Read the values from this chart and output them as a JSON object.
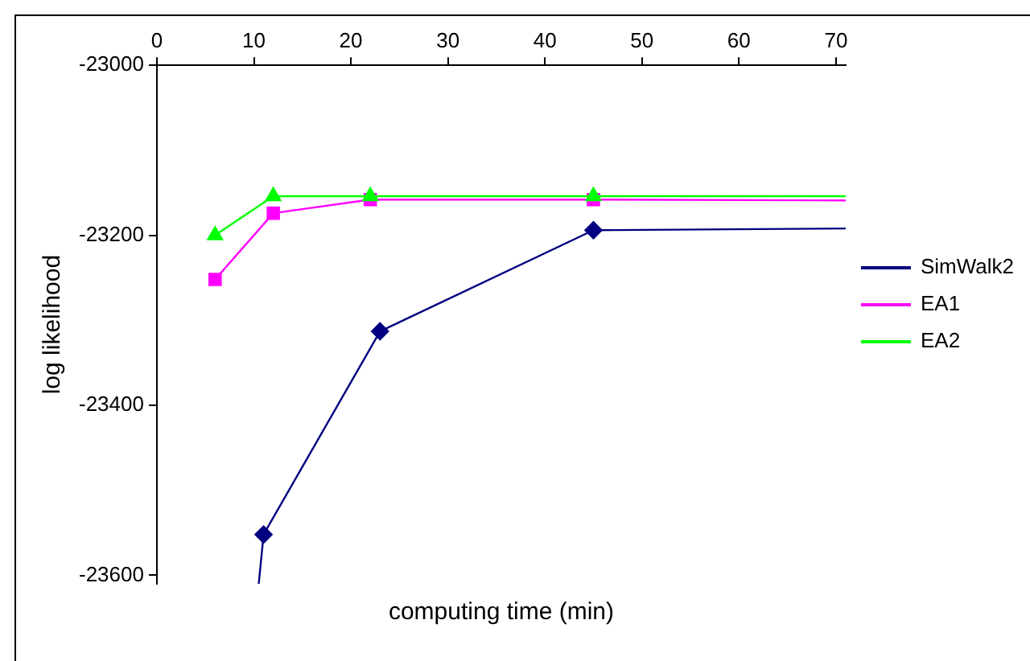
{
  "chart_data": {
    "type": "line",
    "xlabel": "computing time (min)",
    "ylabel": "log likelihood",
    "xlim": [
      0,
      71
    ],
    "xticks": [
      0,
      10,
      20,
      30,
      40,
      50,
      60,
      70
    ],
    "ylim": [
      -23610,
      -23000
    ],
    "yticks": [
      -23000,
      -23200,
      -23400,
      -23600
    ],
    "grid": false,
    "legend": "right",
    "line_style": "solid",
    "series": [
      {
        "name": "SimWalk2",
        "color": "#000080",
        "marker": "diamond",
        "x": [
          10.5,
          11,
          23,
          45,
          71
        ],
        "values": [
          -23610,
          -23552,
          -23313,
          -23194,
          -23192
        ]
      },
      {
        "name": "EA1",
        "color": "#ff00ff",
        "marker": "square",
        "x": [
          6,
          12,
          22,
          45,
          71
        ],
        "values": [
          -23252,
          -23174,
          -23158,
          -23158,
          -23159
        ]
      },
      {
        "name": "EA2",
        "color": "#00ff00",
        "marker": "triangle",
        "x": [
          6,
          12,
          22,
          45,
          71
        ],
        "values": [
          -23200,
          -23154,
          -23154,
          -23154,
          -23154
        ]
      }
    ]
  }
}
